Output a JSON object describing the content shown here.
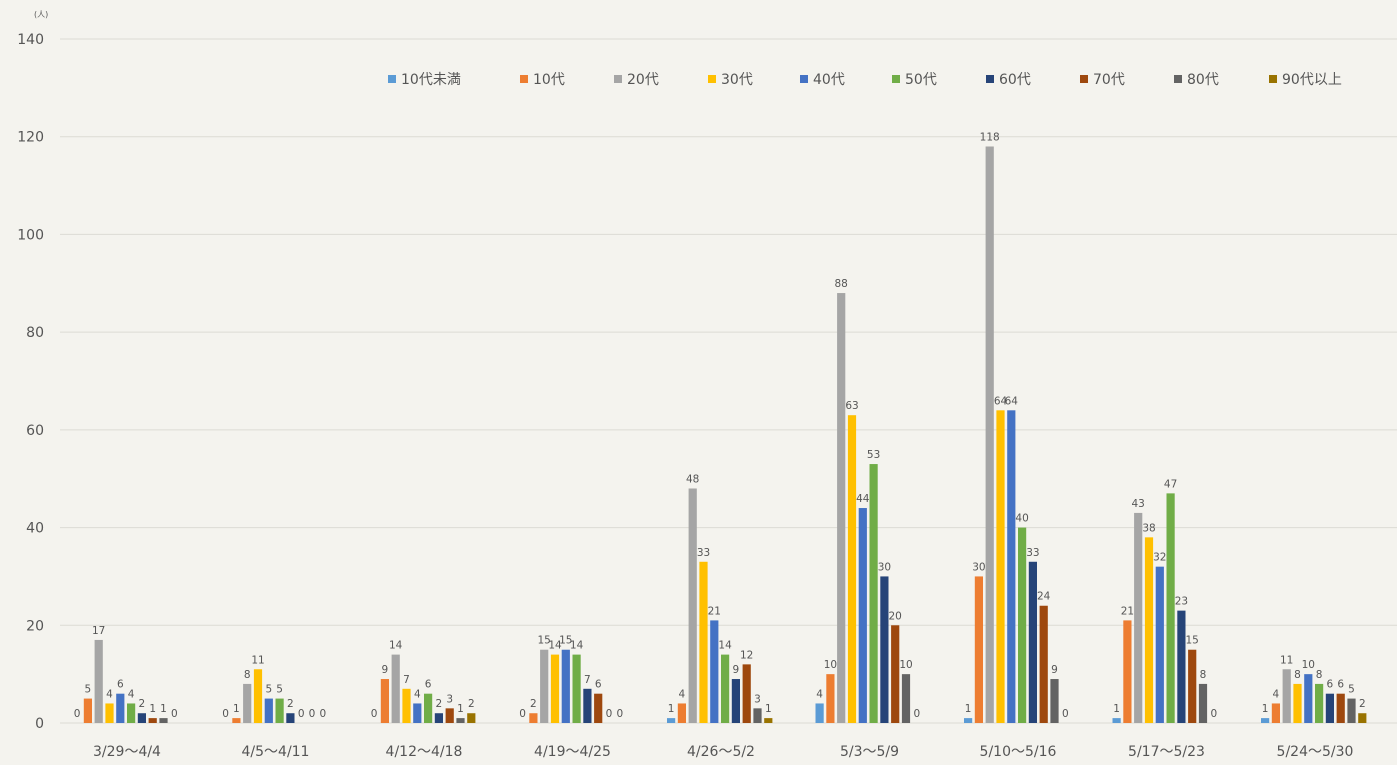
{
  "chart_data": {
    "type": "bar",
    "ylabel": "(人)",
    "ylim": [
      0,
      140
    ],
    "yticks": [
      0,
      20,
      40,
      60,
      80,
      100,
      120,
      140
    ],
    "grid": true,
    "legend_position": "top-right",
    "categories": [
      "3/29～4/4",
      "4/5～4/11",
      "4/12～4/18",
      "4/19～4/25",
      "4/26～5/2",
      "5/3～5/9",
      "5/10～5/16",
      "5/17～5/23",
      "5/24～5/30"
    ],
    "series": [
      {
        "name": "10代未満",
        "color": "#5b9bd5",
        "values": [
          0,
          0,
          0,
          0,
          1,
          4,
          1,
          1,
          1
        ]
      },
      {
        "name": "10代",
        "color": "#ed7d31",
        "values": [
          5,
          1,
          9,
          2,
          4,
          10,
          30,
          21,
          4
        ]
      },
      {
        "name": "20代",
        "color": "#a5a5a5",
        "values": [
          17,
          8,
          14,
          15,
          48,
          88,
          118,
          43,
          11
        ]
      },
      {
        "name": "30代",
        "color": "#ffc000",
        "values": [
          4,
          11,
          7,
          14,
          33,
          63,
          64,
          38,
          8
        ]
      },
      {
        "name": "40代",
        "color": "#4472c4",
        "values": [
          6,
          5,
          4,
          15,
          21,
          44,
          64,
          32,
          10
        ]
      },
      {
        "name": "50代",
        "color": "#70ad47",
        "values": [
          4,
          5,
          6,
          14,
          14,
          53,
          40,
          47,
          8
        ]
      },
      {
        "name": "60代",
        "color": "#264478",
        "values": [
          2,
          2,
          2,
          7,
          9,
          30,
          33,
          23,
          6
        ]
      },
      {
        "name": "70代",
        "color": "#9e480e",
        "values": [
          1,
          0,
          3,
          6,
          12,
          20,
          24,
          15,
          6
        ]
      },
      {
        "name": "80代",
        "color": "#636363",
        "values": [
          1,
          0,
          1,
          0,
          3,
          10,
          9,
          8,
          5
        ]
      },
      {
        "name": "90代以上",
        "color": "#997300",
        "values": [
          0,
          0,
          2,
          0,
          1,
          0,
          0,
          0,
          2
        ]
      }
    ]
  }
}
